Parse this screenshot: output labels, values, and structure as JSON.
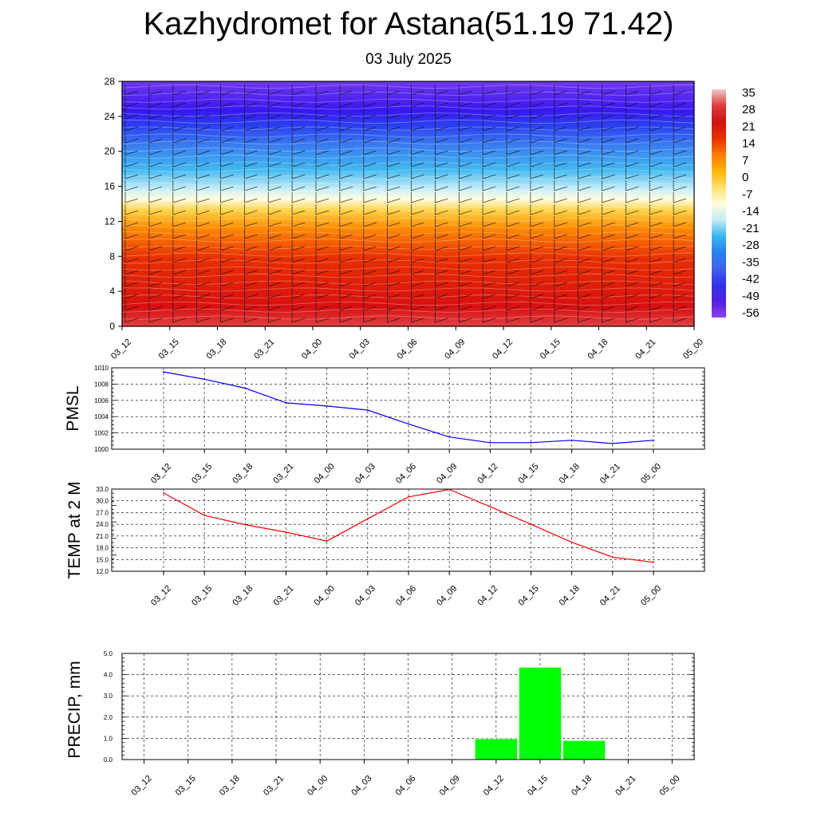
{
  "title": "Kazhydromet for Astana(51.19 71.42)",
  "subtitle": "03 July 2025",
  "chart_data": [
    {
      "type": "heatmap",
      "x_ticks": [
        "03_12",
        "03_15",
        "03_18",
        "03_21",
        "04_00",
        "04_03",
        "04_06",
        "04_09",
        "04_12",
        "04_15",
        "04_18",
        "04_21",
        "05_00"
      ],
      "y_ticks": [
        "0",
        "4",
        "8",
        "12",
        "16",
        "20",
        "24",
        "28"
      ],
      "ylim": [
        0,
        28
      ],
      "colorbar_labels": [
        "35",
        "28",
        "21",
        "14",
        "7",
        "0",
        "-7",
        "-14",
        "-21",
        "-28",
        "-35",
        "-42",
        "-49",
        "-56"
      ],
      "colorbar_colors": [
        "#f0c8c8",
        "#e03a3a",
        "#d01010",
        "#e83000",
        "#ff7a00",
        "#ffb400",
        "#ffe070",
        "#fffcd8",
        "#c8ecf8",
        "#38b8f0",
        "#2880f0",
        "#4060f0",
        "#3030f0",
        "#5020e0",
        "#9040f8"
      ],
      "overlay": "wind barbs"
    },
    {
      "type": "line",
      "ylabel": "PMSL",
      "x": [
        "03_12",
        "03_15",
        "03_18",
        "03_21",
        "04_00",
        "04_03",
        "04_06",
        "04_09",
        "04_12",
        "04_15",
        "04_18",
        "04_21",
        "05_00"
      ],
      "values": [
        1009.5,
        1008.6,
        1007.5,
        1005.7,
        1005.3,
        1004.8,
        1003.1,
        1001.5,
        1000.8,
        1000.8,
        1001.1,
        1000.7,
        1001.1
      ],
      "y_ticks": [
        "1010",
        "1008",
        "1006",
        "1004",
        "1002",
        "1000"
      ],
      "ylim": [
        1000,
        1010
      ],
      "color": "#0000ff",
      "grid": true
    },
    {
      "type": "line",
      "ylabel": "TEMP at 2 M",
      "x": [
        "03_12",
        "03_15",
        "03_18",
        "03_21",
        "04_00",
        "04_03",
        "04_06",
        "04_09",
        "04_12",
        "04_15",
        "04_18",
        "04_21",
        "05_00"
      ],
      "values": [
        32.0,
        26.3,
        23.9,
        22.0,
        19.7,
        25.4,
        31.0,
        32.9,
        28.5,
        24.0,
        19.4,
        15.6,
        14.3
      ],
      "y_ticks": [
        "33.0",
        "30.0",
        "27.0",
        "24.0",
        "21.0",
        "18.0",
        "15.0",
        "12.0"
      ],
      "ylim": [
        12,
        33
      ],
      "color": "#ff0000",
      "grid": true
    },
    {
      "type": "bar",
      "ylabel": "PRECIP, mm",
      "categories": [
        "03_12",
        "03_15",
        "03_18",
        "03_21",
        "04_00",
        "04_03",
        "04_06",
        "04_09",
        "04_12",
        "04_15",
        "04_18",
        "04_21",
        "05_00"
      ],
      "values": [
        0,
        0,
        0,
        0,
        0,
        0,
        0,
        0.03,
        0.98,
        4.35,
        0.9,
        0,
        0
      ],
      "y_ticks": [
        "5.0",
        "4.0",
        "3.0",
        "2.0",
        "1.0",
        "0.0"
      ],
      "ylim": [
        0,
        5
      ],
      "color": "#00ff00",
      "grid": true
    }
  ]
}
